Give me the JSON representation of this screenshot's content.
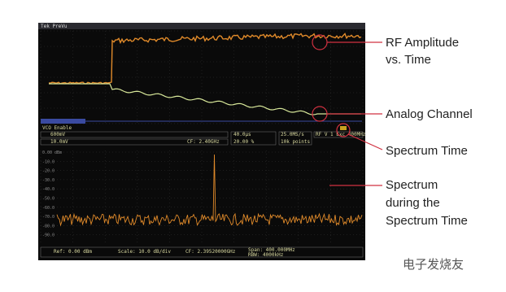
{
  "scope": {
    "header": "Tek PreVu",
    "channel_label": "VCO Enable",
    "readouts": {
      "ch1_scale": "600mV",
      "ch2_scale": "10.0mV",
      "center_freq": "CF: 2.40GHz",
      "time_scale": "40.0µs",
      "trigger_pos": "20.00 %",
      "sample_rate": "25.0MS/s",
      "record_length": "10k points",
      "rf_info": "RF V 1 Exc 400MHz"
    },
    "spectrum_ylabels": [
      "0.00 dBm",
      "-10.0",
      "-20.0",
      "-30.0",
      "-40.0",
      "-50.0",
      "-60.0",
      "-70.0",
      "-80.0",
      "-90.0"
    ],
    "spectrum_readouts": {
      "ref": "Ref: 0.00 dBm",
      "scale": "Scale: 10.0 dB/div",
      "cf": "CF: 2.39520000GHz",
      "span": "Span: 400.000MHz",
      "rbw": "RBW: 4000kHz"
    }
  },
  "annotations": {
    "rf_amplitude": [
      "RF Amplitude",
      "vs. Time"
    ],
    "analog_channel": "Analog Channel",
    "spectrum_time": "Spectrum Time",
    "spectrum_during": [
      "Spectrum",
      "during the",
      "Spectrum Time"
    ]
  },
  "watermark": "电子发烧友"
}
